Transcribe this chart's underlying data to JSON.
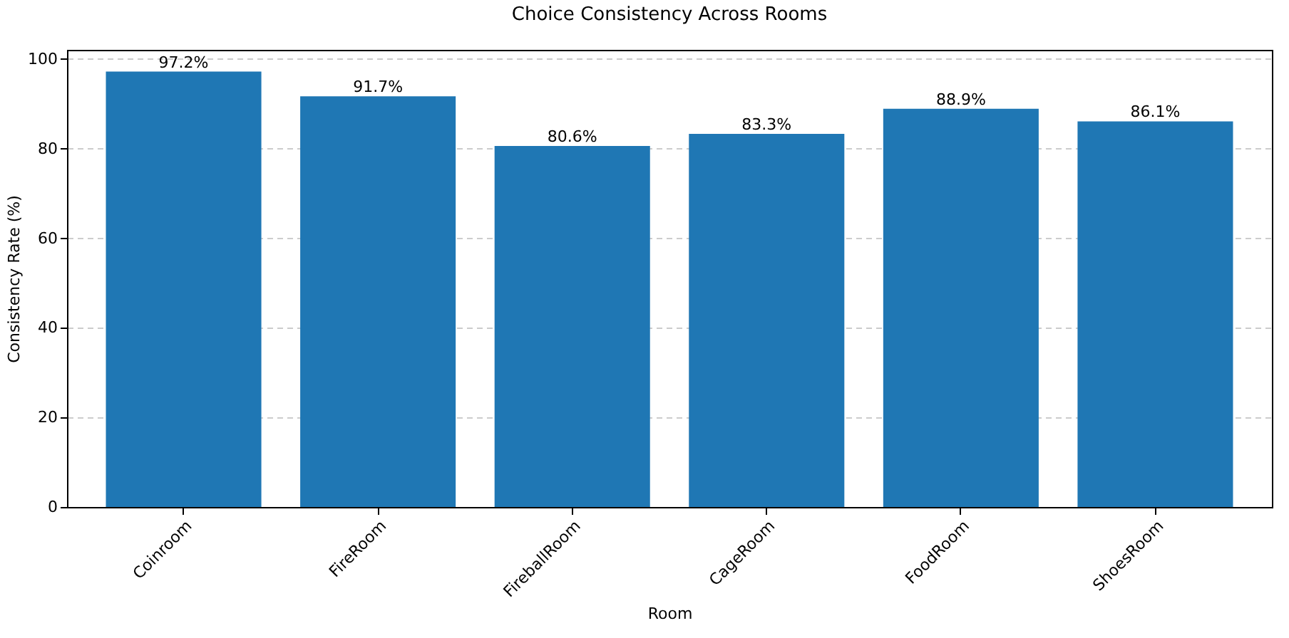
{
  "chart_data": {
    "type": "bar",
    "title": "Choice Consistency Across Rooms",
    "xlabel": "Room",
    "ylabel": "Consistency Rate (%)",
    "categories": [
      "Coinroom",
      "FireRoom",
      "FireballRoom",
      "CageRoom",
      "FoodRoom",
      "ShoesRoom"
    ],
    "values": [
      97.2,
      91.7,
      80.6,
      83.3,
      88.9,
      86.1
    ],
    "value_labels": [
      "97.2%",
      "91.7%",
      "80.6%",
      "83.3%",
      "88.9%",
      "86.1%"
    ],
    "color": "#1f77b4",
    "ylim": [
      0,
      102.06
    ],
    "yticks": [
      0,
      20,
      40,
      60,
      80,
      100
    ],
    "grid": "y"
  }
}
